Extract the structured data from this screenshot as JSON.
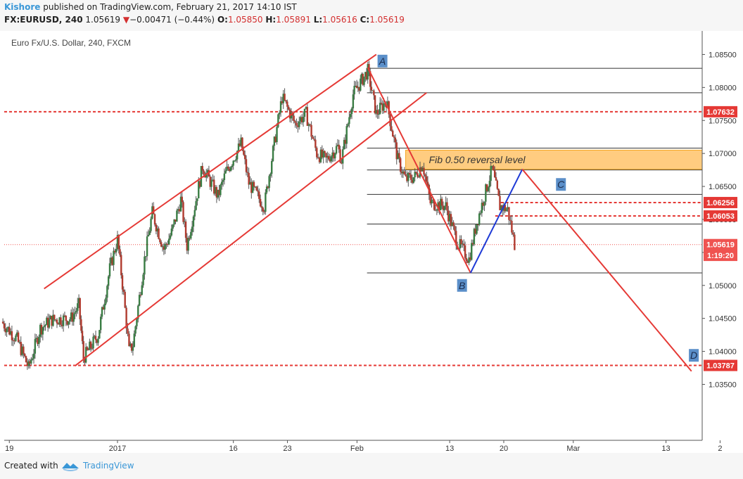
{
  "header": {
    "author": "Kishore",
    "published": " published on TradingView.com, February 21, 2017 14:10 IST",
    "symbol": "FX:EURUSD, 240",
    "last": "1.05619",
    "change_arrow": "▼",
    "change": "−0.00471 (−0.44%)",
    "o_label": "O:",
    "o_value": "1.05850",
    "h_label": "H:",
    "h_value": "1.05891",
    "l_label": "L:",
    "l_value": "1.05616",
    "c_label": "C:",
    "c_value": "1.05619"
  },
  "footer": {
    "created": "Created with",
    "brand": "TradingView"
  },
  "chart_data": {
    "type": "candlestick",
    "title": "Euro Fx/U.S. Dollar, 240, FXCM",
    "ylim": [
      1.031,
      1.0875
    ],
    "y_ticks": [
      "1.08500",
      "1.08000",
      "1.07500",
      "1.07000",
      "1.06500",
      "1.06000",
      "1.05500",
      "1.05000",
      "1.04500",
      "1.04000",
      "1.03500"
    ],
    "x_ticks": [
      {
        "label": "19",
        "day": -13
      },
      {
        "label": "2017",
        "day": 1
      },
      {
        "label": "16",
        "day": 16
      },
      {
        "label": "23",
        "day": 23
      },
      {
        "label": "Feb",
        "day": 32
      },
      {
        "label": "13",
        "day": 44
      },
      {
        "label": "20",
        "day": 51
      },
      {
        "label": "Mar",
        "day": 60
      },
      {
        "label": "13",
        "day": 72
      },
      {
        "label": "2",
        "day": 79
      }
    ],
    "price_labels": [
      {
        "value": "1.07632",
        "price": 1.07632,
        "color": "#e53935"
      },
      {
        "value": "1.06256",
        "price": 1.06256,
        "color": "#e53935"
      },
      {
        "value": "1.06053",
        "price": 1.06053,
        "color": "#e53935"
      },
      {
        "value": "1.05619",
        "price": 1.05619,
        "color": "#ef5350"
      },
      {
        "value": "1:19:20",
        "price": 1.05455,
        "color": "#ef5350"
      },
      {
        "value": "1.03787",
        "price": 1.03787,
        "color": "#e53935"
      }
    ],
    "horizontal_levels": [
      {
        "price": 1.07632,
        "style": "dashed-red",
        "from_day": -15
      },
      {
        "price": 1.03787,
        "style": "dashed-red",
        "from_day": -15
      },
      {
        "price": 1.06256,
        "style": "dashed-red",
        "from_day": 50.6
      },
      {
        "price": 1.06053,
        "style": "dashed-red",
        "from_day": 49.9
      },
      {
        "price": 1.05619,
        "style": "dotted-red",
        "from_day": -15
      },
      {
        "price": 1.0829,
        "style": "fib",
        "from_day": 33.3
      },
      {
        "price": 1.0792,
        "style": "fib",
        "from_day": 33.3
      },
      {
        "price": 1.0708,
        "style": "fib",
        "from_day": 33.3
      },
      {
        "price": 1.0675,
        "style": "fib",
        "from_day": 33.3
      },
      {
        "price": 1.0638,
        "style": "fib",
        "from_day": 33.3
      },
      {
        "price": 1.0593,
        "style": "fib",
        "from_day": 33.3
      },
      {
        "price": 1.0519,
        "style": "fib",
        "from_day": 33.3
      }
    ],
    "fib_zone": {
      "label": "Fib 0.50 reversal level",
      "top": 1.0705,
      "bottom": 1.0676,
      "from_day": 38.3
    },
    "channel": [
      {
        "day0": -8.5,
        "p0": 1.0495,
        "day1": 34.5,
        "p1": 1.085
      },
      {
        "day0": -4.5,
        "p0": 1.0378,
        "day1": 41.0,
        "p1": 1.0792
      }
    ],
    "abcd": [
      {
        "name": "A",
        "day": 33.4,
        "price": 1.083,
        "label_day": 35.3,
        "label_price": 1.084
      },
      {
        "name": "B",
        "day": 46.7,
        "price": 1.0519,
        "label_day": 45.6,
        "label_price": 1.05
      },
      {
        "name": "C",
        "day": 53.4,
        "price": 1.0676,
        "label_day": 58.4,
        "label_price": 1.0653
      },
      {
        "name": "D",
        "day": 75.3,
        "price": 1.037,
        "label_day": 75.6,
        "label_price": 1.0394
      }
    ],
    "candles_summary": {
      "start": "2016-12-17",
      "end": "2017-02-21",
      "interval": "240",
      "path": [
        [
          -14,
          1.0445
        ],
        [
          -12,
          1.0418
        ],
        [
          -10.5,
          1.0375
        ],
        [
          -9,
          1.0435
        ],
        [
          -7.5,
          1.0448
        ],
        [
          -5,
          1.045
        ],
        [
          -4,
          1.047
        ],
        [
          -3.4,
          1.039
        ],
        [
          -1.5,
          1.0425
        ],
        [
          0,
          1.0525
        ],
        [
          1,
          1.057
        ],
        [
          1.8,
          1.0485
        ],
        [
          2.5,
          1.04
        ],
        [
          3,
          1.041
        ],
        [
          4.5,
          1.054
        ],
        [
          5.5,
          1.061
        ],
        [
          7,
          1.0555
        ],
        [
          8,
          1.058
        ],
        [
          9.2,
          1.063
        ],
        [
          10,
          1.056
        ],
        [
          12,
          1.068
        ],
        [
          14,
          1.0635
        ],
        [
          15,
          1.067
        ],
        [
          17,
          1.0715
        ],
        [
          18,
          1.0655
        ],
        [
          20,
          1.062
        ],
        [
          20.8,
          1.068
        ],
        [
          22.3,
          1.0785
        ],
        [
          24,
          1.0745
        ],
        [
          25.4,
          1.076
        ],
        [
          26.8,
          1.07
        ],
        [
          28,
          1.069
        ],
        [
          29.5,
          1.071
        ],
        [
          30,
          1.069
        ],
        [
          31.5,
          1.079
        ],
        [
          33.4,
          1.0825
        ],
        [
          34.5,
          1.076
        ],
        [
          35.8,
          1.078
        ],
        [
          37.3,
          1.069
        ],
        [
          38.3,
          1.066
        ],
        [
          39.5,
          1.0665
        ],
        [
          40.5,
          1.0685
        ],
        [
          41.5,
          1.0625
        ],
        [
          43.5,
          1.062
        ],
        [
          45,
          1.0565
        ],
        [
          46.5,
          1.054
        ],
        [
          47.5,
          1.0595
        ],
        [
          49.5,
          1.0677
        ],
        [
          50.5,
          1.062
        ],
        [
          51.5,
          1.0615
        ],
        [
          52.4,
          1.0562
        ]
      ]
    }
  }
}
